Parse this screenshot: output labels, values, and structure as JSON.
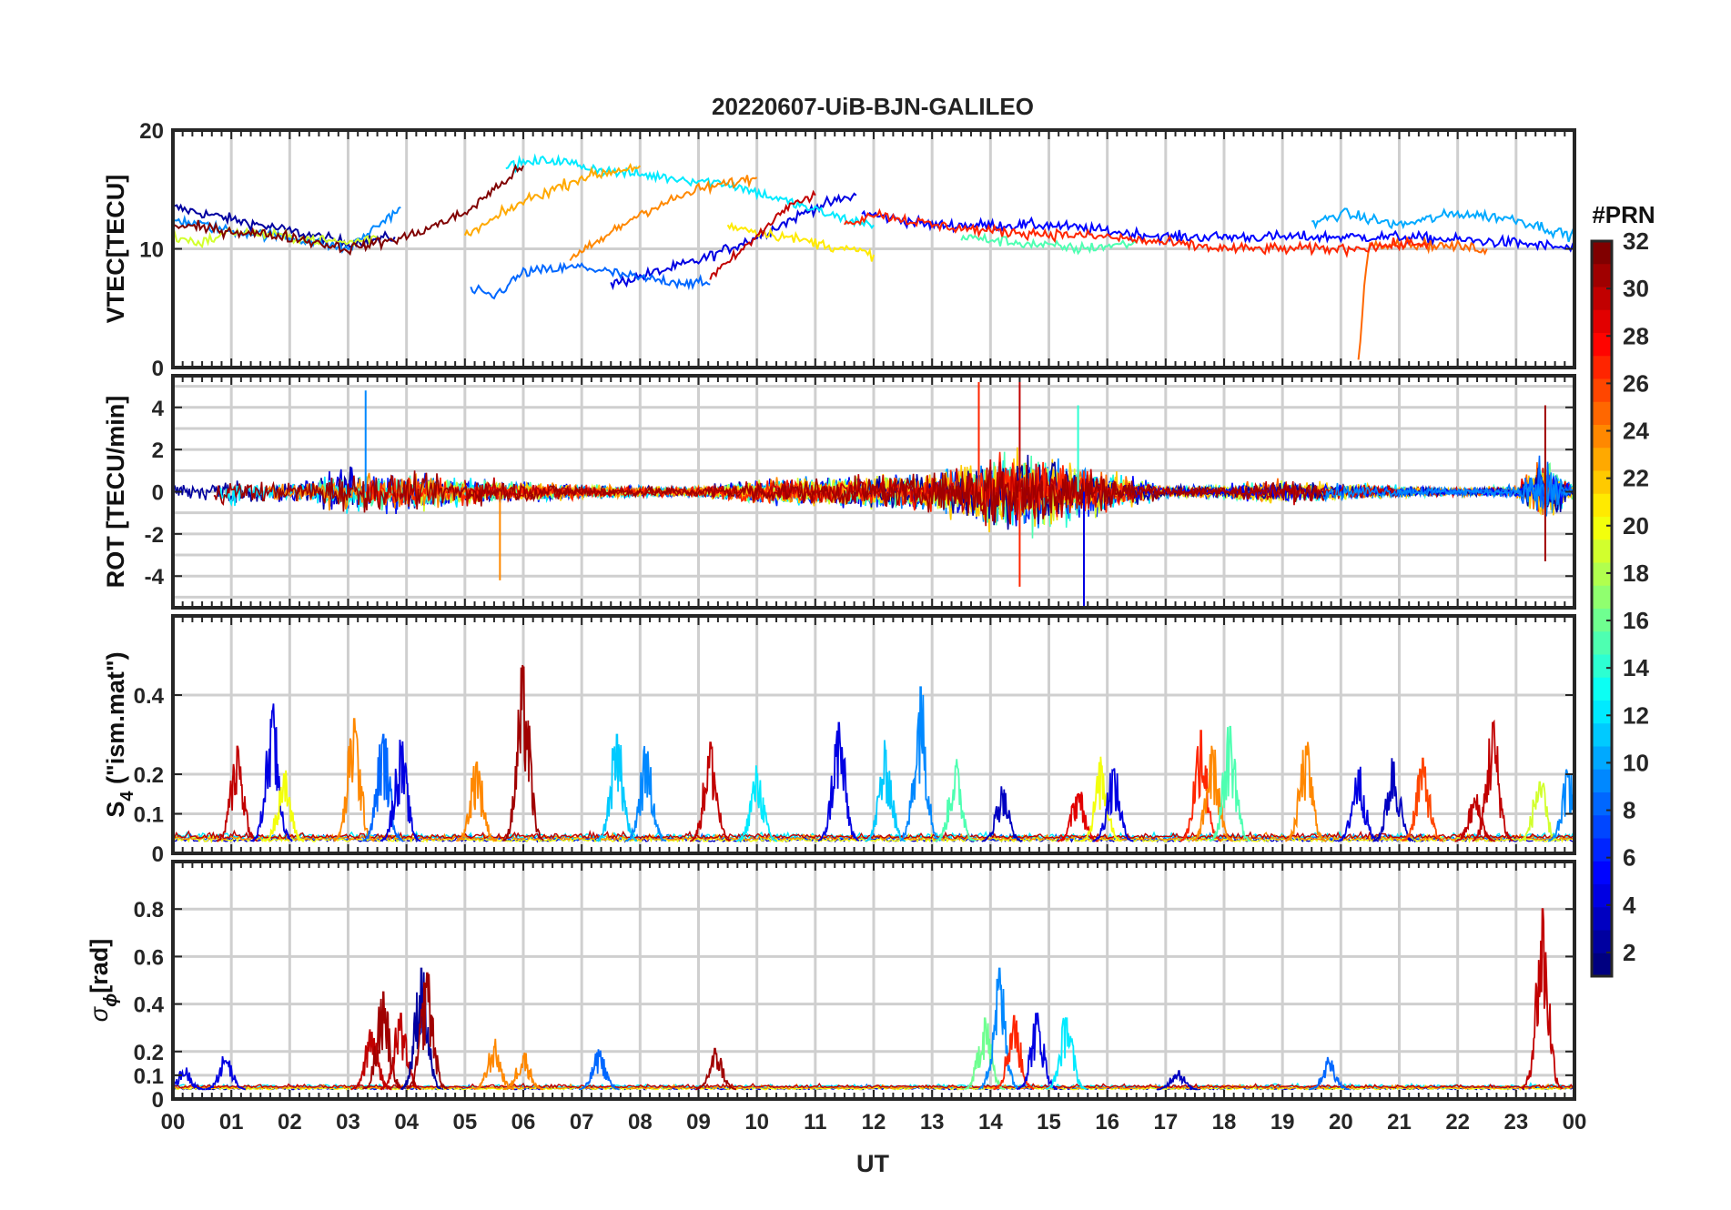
{
  "figure": {
    "title": "20220607-UiB-BJN-GALILEO",
    "xlabel": "UT"
  },
  "colorbar": {
    "label": "#PRN",
    "ticks": [
      "2",
      "4",
      "6",
      "8",
      "10",
      "12",
      "14",
      "16",
      "18",
      "20",
      "22",
      "24",
      "26",
      "28",
      "30",
      "32"
    ],
    "range": [
      1,
      32
    ],
    "colormap": "jet",
    "colors": [
      "#00007f",
      "#0000ff",
      "#007fff",
      "#00ffff",
      "#7fff7f",
      "#ffff00",
      "#ff7f00",
      "#ff0000",
      "#7f0000"
    ]
  },
  "chart_data": [
    {
      "type": "line",
      "panel": "vtec",
      "ylabel": "VTEC[TECU]",
      "ylim": [
        0,
        20
      ],
      "yticks": [
        "0",
        "10",
        "20"
      ],
      "xlim": [
        0,
        24
      ],
      "xticks": [
        "00",
        "01",
        "02",
        "03",
        "04",
        "05",
        "06",
        "07",
        "08",
        "09",
        "10",
        "11",
        "12",
        "13",
        "14",
        "15",
        "16",
        "17",
        "18",
        "19",
        "20",
        "21",
        "22",
        "23",
        "00"
      ],
      "grid": true,
      "series": [
        {
          "prn": 2,
          "x": [
            0,
            1,
            2,
            3,
            3.8
          ],
          "y": [
            13.5,
            12.5,
            11.5,
            10.5,
            11
          ]
        },
        {
          "prn": 4,
          "x": [
            7.5,
            9,
            10,
            11,
            11.7
          ],
          "y": [
            7,
            9,
            11,
            13.5,
            14.5
          ]
        },
        {
          "prn": 5,
          "x": [
            11.8,
            13,
            15,
            17,
            19,
            21,
            23,
            24
          ],
          "y": [
            13,
            12,
            12,
            11,
            11,
            11,
            10.5,
            10
          ]
        },
        {
          "prn": 8,
          "x": [
            5.1,
            5.5,
            6,
            7,
            8,
            9.2
          ],
          "y": [
            6.5,
            6,
            8,
            8.5,
            7.5,
            7
          ]
        },
        {
          "prn": 9,
          "x": [
            0,
            1,
            2,
            3,
            3.9
          ],
          "y": [
            12.5,
            11.5,
            11,
            10,
            13.5
          ]
        },
        {
          "prn": 10,
          "x": [
            19.5,
            20,
            21,
            22,
            23,
            24
          ],
          "y": [
            12,
            13,
            12,
            13,
            12.5,
            11
          ]
        },
        {
          "prn": 12,
          "x": [
            5.7,
            6.5,
            7.5,
            8.5,
            9.5,
            10.5,
            11.5,
            12
          ],
          "y": [
            17,
            17.5,
            16.5,
            16,
            15.5,
            14,
            12.5,
            12
          ]
        },
        {
          "prn": 15,
          "x": [
            13.5,
            14.5,
            15.5,
            16.5
          ],
          "y": [
            11,
            10.5,
            10,
            10.5
          ]
        },
        {
          "prn": 19,
          "x": [
            0,
            0.5,
            1,
            2,
            3,
            3.5
          ],
          "y": [
            11,
            10.5,
            11.5,
            11,
            10.5,
            11
          ]
        },
        {
          "prn": 21,
          "x": [
            9.5,
            10.5,
            11.5,
            12
          ],
          "y": [
            12,
            11,
            10,
            9.5
          ]
        },
        {
          "prn": 23,
          "x": [
            5,
            6,
            7,
            8
          ],
          "y": [
            11,
            14,
            16,
            17
          ]
        },
        {
          "prn": 24,
          "x": [
            6.8,
            8,
            9,
            10
          ],
          "y": [
            9,
            13,
            15,
            16
          ]
        },
        {
          "prn": 25,
          "x": [
            20.3,
            20.4,
            20.5,
            21,
            22.5
          ],
          "y": [
            0.5,
            7,
            10.5,
            10.5,
            10
          ]
        },
        {
          "prn": 27,
          "x": [
            11.5,
            12,
            13,
            14,
            16,
            18,
            20,
            21.5
          ],
          "y": [
            12,
            13,
            12,
            11.5,
            11,
            10,
            10,
            10.5
          ]
        },
        {
          "prn": 30,
          "x": [
            9.2,
            10,
            10.5,
            11
          ],
          "y": [
            7.5,
            11,
            13.5,
            14.5
          ]
        },
        {
          "prn": 32,
          "x": [
            0,
            1,
            2,
            3,
            4,
            5,
            6
          ],
          "y": [
            12,
            11.5,
            11,
            10,
            11,
            13,
            17
          ]
        }
      ]
    },
    {
      "type": "line",
      "panel": "rot",
      "ylabel": "ROT [TECU/min]",
      "ylim": [
        -5.5,
        5.5
      ],
      "yticks": [
        "-4",
        "-2",
        "0",
        "2",
        "4"
      ],
      "xlim": [
        0,
        24
      ],
      "grid": true,
      "activity_profile": {
        "hours": [
          0,
          1,
          2,
          3,
          4,
          5,
          6,
          7,
          8,
          9,
          10,
          11,
          12,
          13,
          14,
          15,
          16,
          17,
          18,
          19,
          20,
          21,
          22,
          23,
          23.5,
          24
        ],
        "amplitude": [
          0.8,
          1.0,
          0.7,
          1.6,
          1.4,
          1.0,
          0.8,
          0.5,
          0.4,
          0.4,
          0.9,
          1.0,
          1.2,
          1.4,
          2.8,
          2.6,
          1.4,
          0.4,
          0.5,
          0.8,
          0.6,
          0.4,
          0.3,
          0.4,
          2.5,
          0.4
        ]
      },
      "notable_peaks": [
        {
          "x": 3.3,
          "y": 4.8
        },
        {
          "x": 5.6,
          "y": -4.2
        },
        {
          "x": 13.8,
          "y": 5.2
        },
        {
          "x": 14.5,
          "y": 5.2
        },
        {
          "x": 14.5,
          "y": -4.5
        },
        {
          "x": 15.6,
          "y": -5.5
        },
        {
          "x": 15.5,
          "y": 4.1
        },
        {
          "x": 23.5,
          "y": 4.1
        },
        {
          "x": 23.5,
          "y": -3.3
        }
      ]
    },
    {
      "type": "line",
      "panel": "s4",
      "ylabel": "S",
      "ylabel_sub": "4",
      "ylabel_suffix": " (\"ism.mat\")",
      "ylim": [
        0,
        0.6
      ],
      "yticks": [
        "0",
        "0.1",
        "0.2",
        "0.4"
      ],
      "yticks_values": [
        0,
        0.1,
        0.2,
        0.4
      ],
      "xlim": [
        0,
        24
      ],
      "grid": true,
      "bursts": [
        {
          "x": 1.1,
          "h": 0.27,
          "prn": 30
        },
        {
          "x": 1.7,
          "h": 0.36,
          "prn": 4
        },
        {
          "x": 1.9,
          "h": 0.2,
          "prn": 20
        },
        {
          "x": 3.1,
          "h": 0.34,
          "prn": 24
        },
        {
          "x": 3.6,
          "h": 0.3,
          "prn": 8
        },
        {
          "x": 3.9,
          "h": 0.27,
          "prn": 4
        },
        {
          "x": 5.2,
          "h": 0.23,
          "prn": 24
        },
        {
          "x": 6.0,
          "h": 0.47,
          "prn": 31
        },
        {
          "x": 7.6,
          "h": 0.3,
          "prn": 11
        },
        {
          "x": 8.1,
          "h": 0.25,
          "prn": 9
        },
        {
          "x": 9.2,
          "h": 0.28,
          "prn": 30
        },
        {
          "x": 10.0,
          "h": 0.2,
          "prn": 12
        },
        {
          "x": 11.4,
          "h": 0.33,
          "prn": 4
        },
        {
          "x": 12.2,
          "h": 0.26,
          "prn": 11
        },
        {
          "x": 12.8,
          "h": 0.42,
          "prn": 9
        },
        {
          "x": 13.4,
          "h": 0.22,
          "prn": 15
        },
        {
          "x": 14.2,
          "h": 0.15,
          "prn": 3
        },
        {
          "x": 15.5,
          "h": 0.15,
          "prn": 29
        },
        {
          "x": 15.9,
          "h": 0.22,
          "prn": 20
        },
        {
          "x": 16.1,
          "h": 0.21,
          "prn": 4
        },
        {
          "x": 17.6,
          "h": 0.31,
          "prn": 27
        },
        {
          "x": 17.8,
          "h": 0.26,
          "prn": 24
        },
        {
          "x": 18.1,
          "h": 0.32,
          "prn": 15
        },
        {
          "x": 19.4,
          "h": 0.27,
          "prn": 24
        },
        {
          "x": 20.3,
          "h": 0.21,
          "prn": 4
        },
        {
          "x": 20.9,
          "h": 0.23,
          "prn": 3
        },
        {
          "x": 21.4,
          "h": 0.24,
          "prn": 26
        },
        {
          "x": 22.3,
          "h": 0.13,
          "prn": 30
        },
        {
          "x": 22.6,
          "h": 0.33,
          "prn": 30
        },
        {
          "x": 23.4,
          "h": 0.18,
          "prn": 19
        },
        {
          "x": 23.9,
          "h": 0.2,
          "prn": 9
        }
      ]
    },
    {
      "type": "line",
      "panel": "sigma_phi",
      "ylabel": "σ",
      "ylabel_sub": "ϕ",
      "ylabel_suffix": "[rad]",
      "ylim": [
        0,
        1.0
      ],
      "yticks": [
        "0",
        "0.1",
        "0.2",
        "0.4",
        "0.6",
        "0.8"
      ],
      "yticks_values": [
        0,
        0.1,
        0.2,
        0.4,
        0.6,
        0.8
      ],
      "xlim": [
        0,
        24
      ],
      "grid": true,
      "bursts": [
        {
          "x": 0.2,
          "h": 0.1,
          "prn": 4
        },
        {
          "x": 0.9,
          "h": 0.16,
          "prn": 4
        },
        {
          "x": 3.4,
          "h": 0.28,
          "prn": 30
        },
        {
          "x": 3.6,
          "h": 0.45,
          "prn": 31
        },
        {
          "x": 3.9,
          "h": 0.36,
          "prn": 30
        },
        {
          "x": 4.25,
          "h": 0.55,
          "prn": 2
        },
        {
          "x": 4.35,
          "h": 0.53,
          "prn": 31
        },
        {
          "x": 5.5,
          "h": 0.22,
          "prn": 24
        },
        {
          "x": 6.0,
          "h": 0.18,
          "prn": 24
        },
        {
          "x": 7.3,
          "h": 0.18,
          "prn": 8
        },
        {
          "x": 9.3,
          "h": 0.19,
          "prn": 31
        },
        {
          "x": 13.9,
          "h": 0.34,
          "prn": 16
        },
        {
          "x": 14.15,
          "h": 0.55,
          "prn": 9
        },
        {
          "x": 14.4,
          "h": 0.35,
          "prn": 27
        },
        {
          "x": 14.8,
          "h": 0.36,
          "prn": 4
        },
        {
          "x": 15.3,
          "h": 0.34,
          "prn": 12
        },
        {
          "x": 17.2,
          "h": 0.1,
          "prn": 3
        },
        {
          "x": 19.8,
          "h": 0.15,
          "prn": 8
        },
        {
          "x": 23.45,
          "h": 0.8,
          "prn": 30
        }
      ]
    }
  ]
}
